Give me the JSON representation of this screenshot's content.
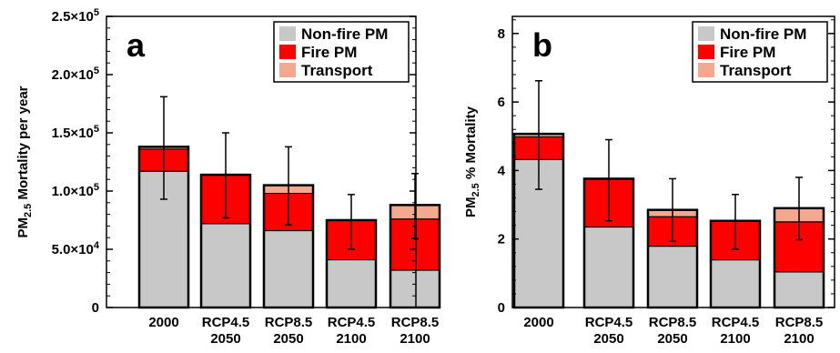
{
  "chart_data": [
    {
      "type": "bar",
      "stacked": true,
      "panel_label": "a",
      "ylabel_main": "PM",
      "ylabel_sub": "2.5",
      "ylabel_rest": " Mortality per year",
      "ylim": [
        0,
        250000
      ],
      "yticks": [
        0,
        50000,
        100000,
        150000,
        200000,
        250000
      ],
      "ytick_labels": [
        {
          "mantissa": "0",
          "exponent": ""
        },
        {
          "mantissa": "5.0×10",
          "exponent": "4"
        },
        {
          "mantissa": "1.0×10",
          "exponent": "5"
        },
        {
          "mantissa": "1.5×10",
          "exponent": "5"
        },
        {
          "mantissa": "2.0×10",
          "exponent": "5"
        },
        {
          "mantissa": "2.5×10",
          "exponent": "5"
        }
      ],
      "categories": [
        {
          "line1": "2000",
          "line2": ""
        },
        {
          "line1": "RCP4.5",
          "line2": "2050"
        },
        {
          "line1": "RCP8.5",
          "line2": "2050"
        },
        {
          "line1": "RCP4.5",
          "line2": "2100"
        },
        {
          "line1": "RCP8.5",
          "line2": "2100"
        }
      ],
      "series": [
        {
          "name": "Non-fire PM",
          "color": "#c8c8c8",
          "values": [
            117000,
            72000,
            66000,
            41000,
            32000
          ]
        },
        {
          "name": "Fire PM",
          "color": "#ff0000",
          "values": [
            19000,
            42000,
            32000,
            34000,
            44000
          ]
        },
        {
          "name": "Transport",
          "color": "#f5a88e",
          "values": [
            2000,
            0,
            7000,
            0,
            12000
          ]
        }
      ],
      "error_bars": [
        {
          "low": 93000,
          "high": 181000
        },
        {
          "low": 77000,
          "high": 150000
        },
        {
          "low": 71000,
          "high": 138000
        },
        {
          "low": 50000,
          "high": 97000
        },
        {
          "low": 59000,
          "high": 115000
        }
      ],
      "legend": "top-right"
    },
    {
      "type": "bar",
      "stacked": true,
      "panel_label": "b",
      "ylabel_main": "PM",
      "ylabel_sub": "2.5",
      "ylabel_rest": " % Mortality",
      "ylim": [
        0,
        8.5
      ],
      "yticks": [
        0,
        2,
        4,
        6,
        8
      ],
      "ytick_labels": [
        {
          "mantissa": "0",
          "exponent": ""
        },
        {
          "mantissa": "2",
          "exponent": ""
        },
        {
          "mantissa": "4",
          "exponent": ""
        },
        {
          "mantissa": "6",
          "exponent": ""
        },
        {
          "mantissa": "8",
          "exponent": ""
        }
      ],
      "categories": [
        {
          "line1": "2000",
          "line2": ""
        },
        {
          "line1": "RCP4.5",
          "line2": "2050"
        },
        {
          "line1": "RCP8.5",
          "line2": "2050"
        },
        {
          "line1": "RCP4.5",
          "line2": "2100"
        },
        {
          "line1": "RCP8.5",
          "line2": "2100"
        }
      ],
      "series": [
        {
          "name": "Non-fire PM",
          "color": "#c8c8c8",
          "values": [
            4.32,
            2.35,
            1.79,
            1.39,
            1.04
          ]
        },
        {
          "name": "Fire PM",
          "color": "#ff0000",
          "values": [
            0.66,
            1.41,
            0.86,
            1.14,
            1.46
          ]
        },
        {
          "name": "Transport",
          "color": "#f5a88e",
          "values": [
            0.09,
            0,
            0.2,
            0,
            0.4
          ]
        }
      ],
      "error_bars": [
        {
          "low": 3.45,
          "high": 6.62
        },
        {
          "low": 2.53,
          "high": 4.9
        },
        {
          "low": 1.93,
          "high": 3.76
        },
        {
          "low": 1.7,
          "high": 3.3
        },
        {
          "low": 1.98,
          "high": 3.8
        }
      ],
      "legend": "top-right"
    }
  ]
}
